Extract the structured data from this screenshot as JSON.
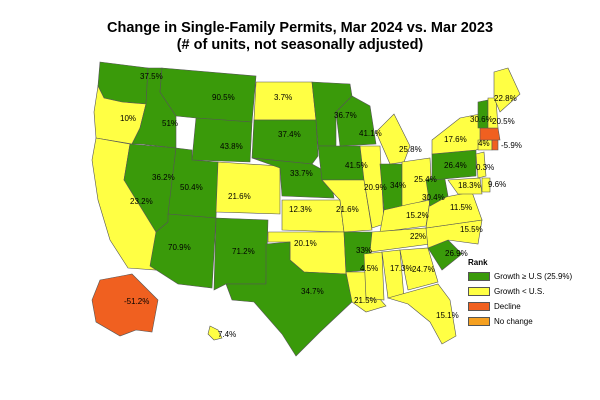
{
  "title_line1": "Change in Single-Family Permits, Mar 2024 vs. Mar 2023",
  "title_line2": "(# of units, not seasonally adjusted)",
  "colors": {
    "growth_above": "#3a9a0a",
    "growth_below": "#ffff44",
    "decline": "#f06020",
    "no_change": "#f5a020",
    "border": "#555555"
  },
  "legend": {
    "title": "Rank",
    "items": [
      {
        "label": "Growth ≥ U.S (25.9%)",
        "color": "#3a9a0a"
      },
      {
        "label": "Growth < U.S.",
        "color": "#ffff44"
      },
      {
        "label": "Decline",
        "color": "#f06020"
      },
      {
        "label": "No change",
        "color": "#f5a020"
      }
    ]
  },
  "states": [
    {
      "name": "WA",
      "value": "37.5%",
      "category": "above"
    },
    {
      "name": "OR",
      "value": "10%",
      "category": "below"
    },
    {
      "name": "CA",
      "value": "23.2%",
      "category": "below"
    },
    {
      "name": "ID",
      "value": "51%",
      "category": "above"
    },
    {
      "name": "NV",
      "value": "36.2%",
      "category": "above"
    },
    {
      "name": "MT",
      "value": "90.5%",
      "category": "above"
    },
    {
      "name": "WY",
      "value": "43.8%",
      "category": "above"
    },
    {
      "name": "UT",
      "value": "50.4%",
      "category": "above"
    },
    {
      "name": "AZ",
      "value": "70.9%",
      "category": "above"
    },
    {
      "name": "CO",
      "value": "21.6%",
      "category": "below"
    },
    {
      "name": "NM",
      "value": "71.2%",
      "category": "above"
    },
    {
      "name": "ND",
      "value": "3.7%",
      "category": "below"
    },
    {
      "name": "SD",
      "value": "37.4%",
      "category": "above"
    },
    {
      "name": "NE",
      "value": "33.7%",
      "category": "above"
    },
    {
      "name": "KS",
      "value": "12.3%",
      "category": "below"
    },
    {
      "name": "OK",
      "value": "20.1%",
      "category": "below"
    },
    {
      "name": "TX",
      "value": "34.7%",
      "category": "above"
    },
    {
      "name": "MN",
      "value": "36.7%",
      "category": "above"
    },
    {
      "name": "IA",
      "value": "41.5%",
      "category": "above"
    },
    {
      "name": "MO",
      "value": "21.6%",
      "category": "below"
    },
    {
      "name": "AR",
      "value": "33%",
      "category": "above"
    },
    {
      "name": "LA",
      "value": "21.5%",
      "category": "below"
    },
    {
      "name": "WI",
      "value": "41.1%",
      "category": "above"
    },
    {
      "name": "IL",
      "value": "20.9%",
      "category": "below"
    },
    {
      "name": "MI",
      "value": "25.8%",
      "category": "below"
    },
    {
      "name": "IN",
      "value": "34%",
      "category": "above"
    },
    {
      "name": "OH",
      "value": "25.4%",
      "category": "below"
    },
    {
      "name": "KY",
      "value": "15.2%",
      "category": "below"
    },
    {
      "name": "TN",
      "value": "22%",
      "category": "below"
    },
    {
      "name": "MS",
      "value": "4.5%",
      "category": "below"
    },
    {
      "name": "AL",
      "value": "17.3%",
      "category": "below"
    },
    {
      "name": "GA",
      "value": "24.7%",
      "category": "below"
    },
    {
      "name": "FL",
      "value": "15.1%",
      "category": "below"
    },
    {
      "name": "SC",
      "value": "26.9%",
      "category": "above"
    },
    {
      "name": "NC",
      "value": "15.5%",
      "category": "below"
    },
    {
      "name": "VA",
      "value": "11.5%",
      "category": "below"
    },
    {
      "name": "WV",
      "value": "30.4%",
      "category": "above"
    },
    {
      "name": "PA",
      "value": "26.4%",
      "category": "above"
    },
    {
      "name": "NY",
      "value": "17.6%",
      "category": "below"
    },
    {
      "name": "MD",
      "value": "18.3%",
      "category": "below"
    },
    {
      "name": "DE",
      "value": "9.6%",
      "category": "below"
    },
    {
      "name": "NJ",
      "value": "0.3%",
      "category": "below"
    },
    {
      "name": "CT",
      "value": "4%",
      "category": "below"
    },
    {
      "name": "RI",
      "value": "-5.9%",
      "category": "decline"
    },
    {
      "name": "MA",
      "value": "",
      "category": "decline"
    },
    {
      "name": "VT",
      "value": "30.6%",
      "category": "above"
    },
    {
      "name": "NH",
      "value": "20.5%",
      "category": "below"
    },
    {
      "name": "ME",
      "value": "22.8%",
      "category": "below"
    },
    {
      "name": "AK",
      "value": "-51.2%",
      "category": "decline"
    },
    {
      "name": "HI",
      "value": "7.4%",
      "category": "below"
    }
  ]
}
